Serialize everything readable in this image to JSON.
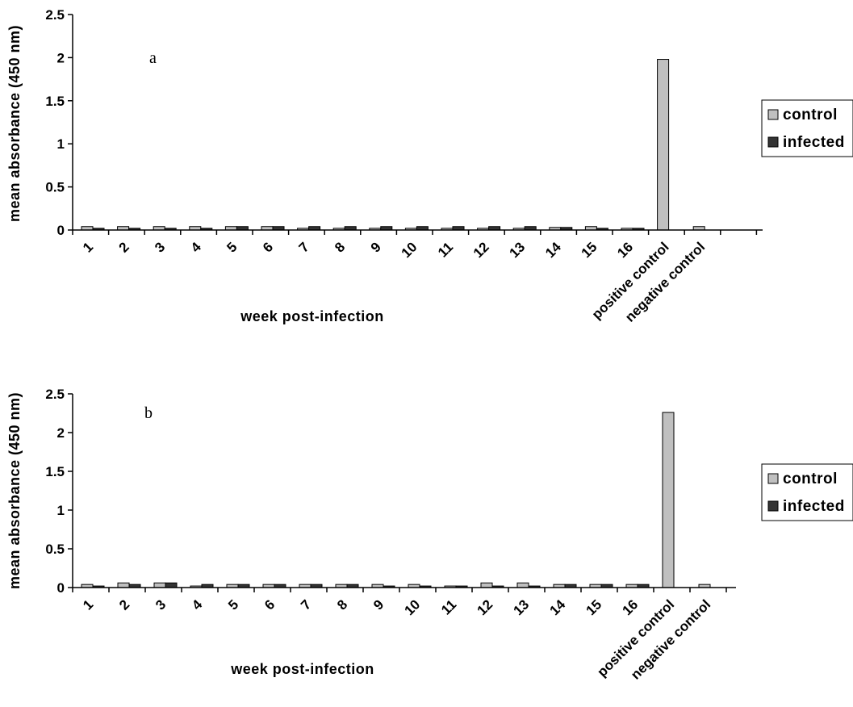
{
  "chart_data": [
    {
      "type": "bar",
      "panel_label": "a",
      "xlabel": "week post-infection",
      "ylabel": "mean absorbance (450 nm)",
      "ylim": [
        0,
        2.5
      ],
      "yticks": [
        "0",
        "0.5",
        "1",
        "1.5",
        "2",
        "2.5"
      ],
      "categories": [
        "1",
        "2",
        "3",
        "4",
        "5",
        "6",
        "7",
        "8",
        "9",
        "10",
        "11",
        "12",
        "13",
        "14",
        "15",
        "16",
        "positive control",
        "negative control"
      ],
      "series": [
        {
          "name": "control",
          "color": "#c0c0c0",
          "values": [
            0.04,
            0.04,
            0.04,
            0.04,
            0.04,
            0.04,
            0.02,
            0.02,
            0.02,
            0.02,
            0.02,
            0.02,
            0.02,
            0.03,
            0.04,
            0.02,
            1.98,
            0.04
          ]
        },
        {
          "name": "infected",
          "color": "#333333",
          "values": [
            0.02,
            0.02,
            0.02,
            0.02,
            0.04,
            0.04,
            0.04,
            0.04,
            0.04,
            0.04,
            0.04,
            0.04,
            0.04,
            0.03,
            0.02,
            0.02,
            0,
            0
          ]
        }
      ],
      "grid": false,
      "legend": "right"
    },
    {
      "type": "bar",
      "panel_label": "b",
      "xlabel": "week post-infection",
      "ylabel": "mean absorbance (450 nm)",
      "ylim": [
        0,
        2.5
      ],
      "yticks": [
        "0",
        "0.5",
        "1",
        "1.5",
        "2",
        "2.5"
      ],
      "categories": [
        "1",
        "2",
        "3",
        "4",
        "5",
        "6",
        "7",
        "8",
        "9",
        "10",
        "11",
        "12",
        "13",
        "14",
        "15",
        "16",
        "positive control",
        "negative control"
      ],
      "series": [
        {
          "name": "control",
          "color": "#c0c0c0",
          "values": [
            0.04,
            0.06,
            0.06,
            0.02,
            0.04,
            0.04,
            0.04,
            0.04,
            0.04,
            0.04,
            0.02,
            0.06,
            0.06,
            0.04,
            0.04,
            0.04,
            2.26,
            0.04
          ]
        },
        {
          "name": "infected",
          "color": "#333333",
          "values": [
            0.02,
            0.04,
            0.06,
            0.04,
            0.04,
            0.04,
            0.04,
            0.04,
            0.02,
            0.02,
            0.02,
            0.02,
            0.02,
            0.04,
            0.04,
            0.04,
            0,
            0
          ]
        }
      ],
      "grid": false,
      "legend": "right"
    }
  ]
}
